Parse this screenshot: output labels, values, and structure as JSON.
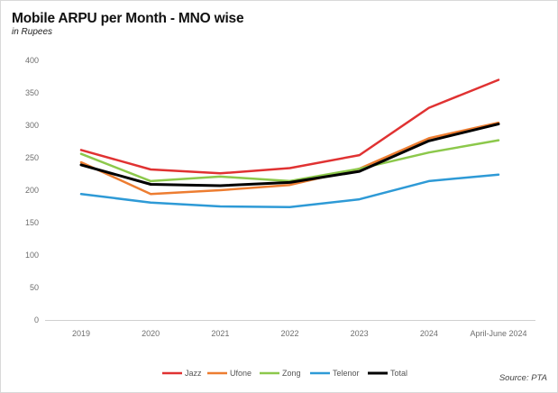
{
  "chart_data": {
    "type": "line",
    "title": "Mobile ARPU per Month - MNO wise",
    "subtitle": "in Rupees",
    "source": "Source: PTA",
    "xlabel": "",
    "ylabel": "",
    "ylim": [
      0,
      400
    ],
    "yticks": [
      0,
      50,
      100,
      150,
      200,
      250,
      300,
      350,
      400
    ],
    "grid": false,
    "legend_position": "bottom",
    "categories": [
      "2019",
      "2020",
      "2021",
      "2022",
      "2023",
      "2024",
      "April-June 2024"
    ],
    "series": [
      {
        "name": "Jazz",
        "color": "#e03232",
        "values": [
          262,
          232,
          226,
          234,
          254,
          327,
          370
        ]
      },
      {
        "name": "Ufone",
        "color": "#ed7d31",
        "values": [
          243,
          194,
          200,
          208,
          233,
          280,
          304
        ]
      },
      {
        "name": "Zong",
        "color": "#8cc84b",
        "values": [
          256,
          214,
          221,
          214,
          233,
          258,
          277
        ]
      },
      {
        "name": "Telenor",
        "color": "#2e9ad6",
        "values": [
          194,
          181,
          175,
          174,
          186,
          214,
          224
        ]
      },
      {
        "name": "Total",
        "color": "#000000",
        "values": [
          239,
          209,
          207,
          212,
          229,
          276,
          302
        ]
      }
    ]
  }
}
